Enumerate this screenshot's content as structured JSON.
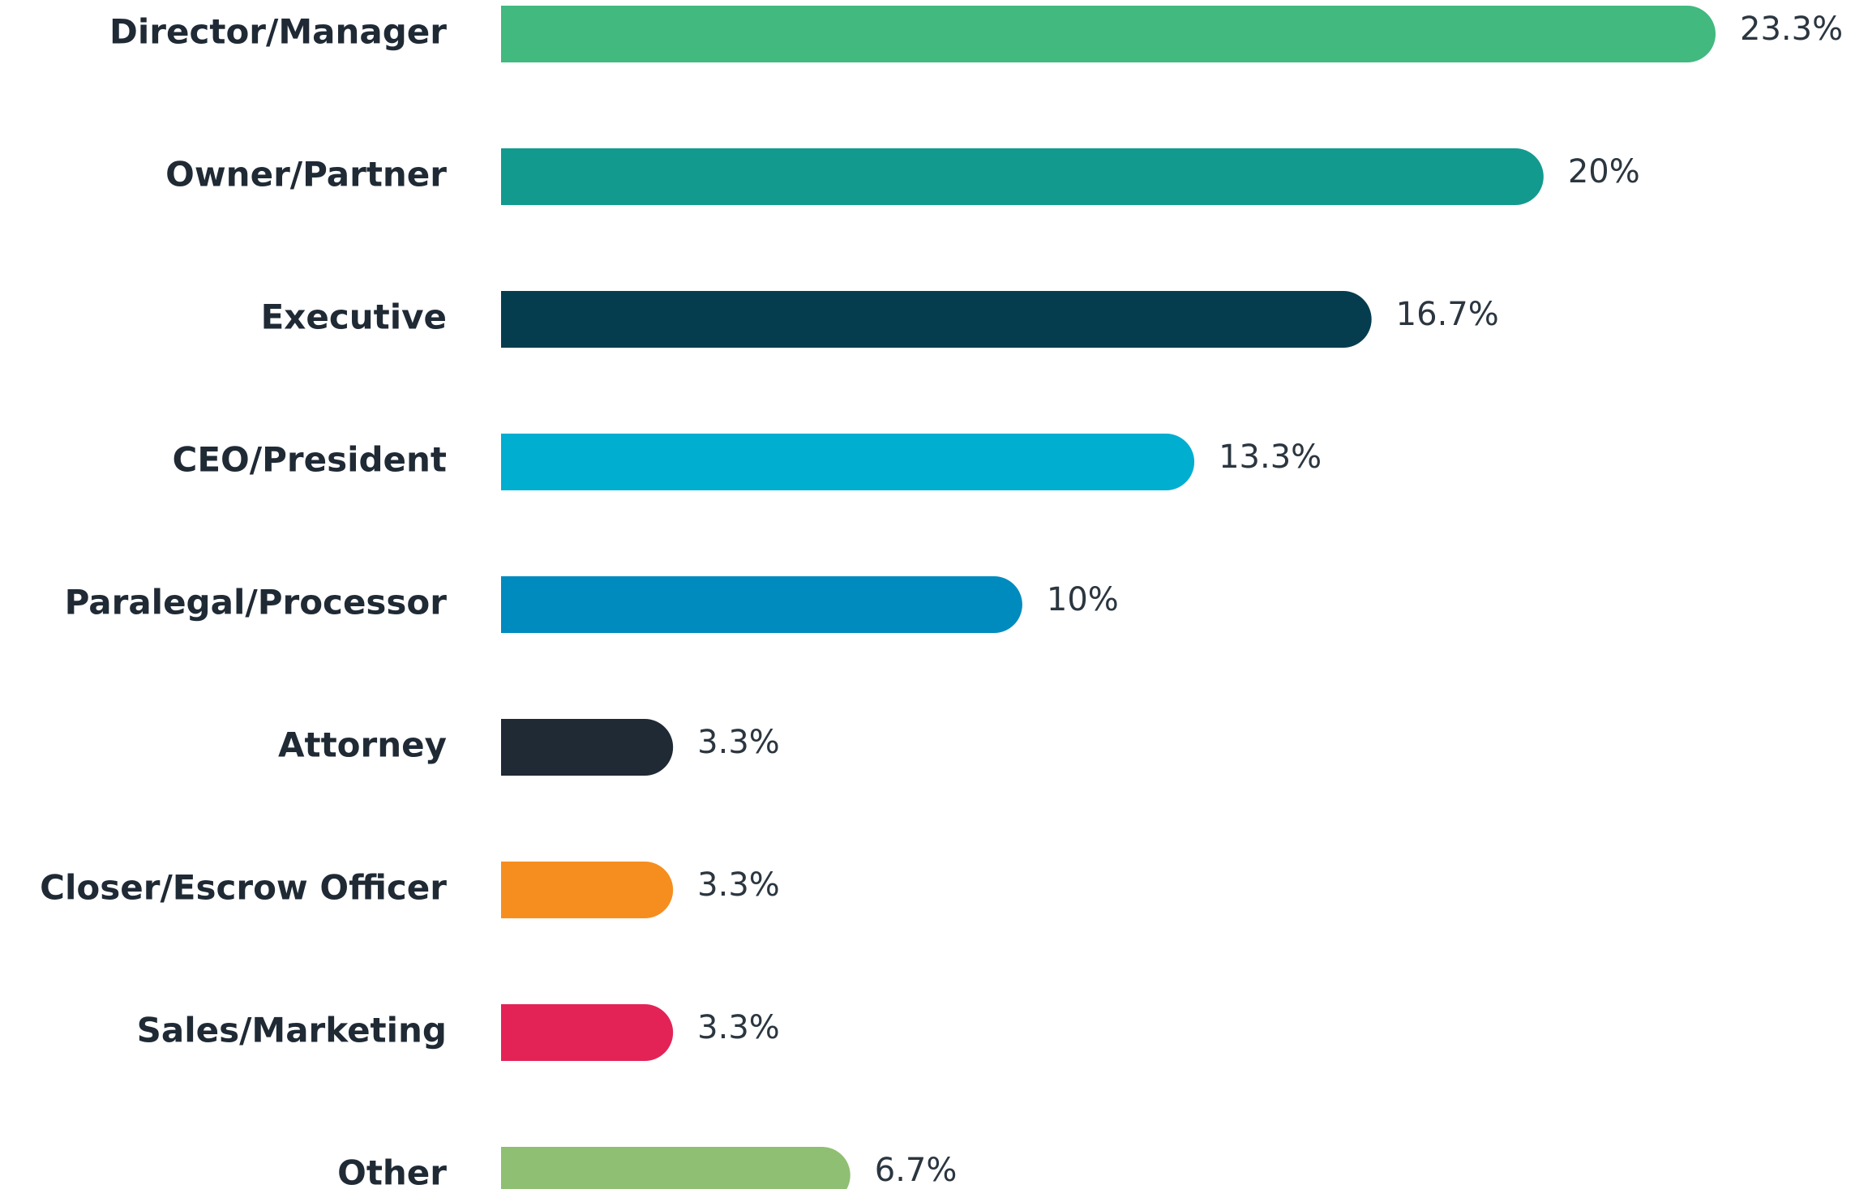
{
  "chart_data": {
    "type": "bar",
    "orientation": "horizontal",
    "categories": [
      "Director/Manager",
      "Owner/Partner",
      "Executive",
      "CEO/President",
      "Paralegal/Processor",
      "Attorney",
      "Closer/Escrow Officer",
      "Sales/Marketing",
      "Other"
    ],
    "values": [
      23.3,
      20,
      16.7,
      13.3,
      10,
      3.3,
      3.3,
      3.3,
      6.7
    ],
    "value_labels": [
      "23.3%",
      "20%",
      "16.7%",
      "13.3%",
      "10%",
      "3.3%",
      "3.3%",
      "3.3%",
      "6.7%"
    ],
    "colors": [
      "#41b97f",
      "#139a8f",
      "#063d4e",
      "#00aed0",
      "#008bbf",
      "#1f2a35",
      "#f68e1f",
      "#e32356",
      "#8fbf72"
    ]
  }
}
